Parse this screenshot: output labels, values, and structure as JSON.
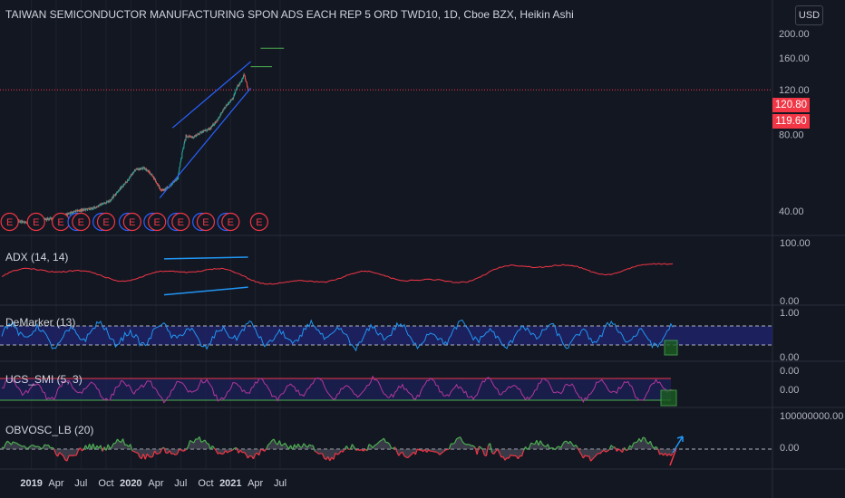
{
  "header": {
    "title": "TAIWAN SEMICONDUCTOR MANUFACTURING SPON ADS EACH REP 5 ORD TWD10, 1D, Cboe BZX, Heikin Ashi",
    "currency": "USD"
  },
  "price_tags": {
    "high": "120.80",
    "last": "119.60"
  },
  "colors": {
    "background": "#131722",
    "up": "#26a69a",
    "down": "#ef5350",
    "channel": "#2962ff",
    "adx": "#f23645",
    "demarker": "#2962ff",
    "smi": "#b2379d",
    "obv_up": "#4caf50",
    "obv_down": "#f23645",
    "target_line": "#4caf50",
    "earnings": "#f23645",
    "dividend": "#2962ff"
  },
  "panels": {
    "adx": {
      "label": "ADX (14, 14)",
      "y_ticks": [
        "100.00",
        "0.00"
      ]
    },
    "demarker": {
      "label": "DeMarker (13)",
      "y_ticks": [
        "1.00",
        "0.00"
      ]
    },
    "smi": {
      "label": "UCS_SMI (5, 3)",
      "y_ticks": [
        "0.00",
        "0.00"
      ]
    },
    "obv": {
      "label": "OBVOSC_LB (20)",
      "y_ticks": [
        "100000000.00",
        "0.00"
      ]
    }
  },
  "chart_data": {
    "type": "candlestick",
    "price_axis_ticks": [
      200,
      160,
      120,
      80,
      40
    ],
    "price_axis_labels": [
      "200.00",
      "160.00",
      "120.00",
      "80.00",
      "40.00"
    ],
    "x_ticks": [
      "2019",
      "Apr",
      "Jul",
      "Oct",
      "2020",
      "Apr",
      "Jul",
      "Oct",
      "2021",
      "Apr",
      "Jul"
    ],
    "price_anchors": {
      "x": [
        "2018-10-01",
        "2018-12-24",
        "2019-04-15",
        "2019-06-15",
        "2019-08-15",
        "2019-10-15",
        "2019-12-15",
        "2020-01-15",
        "2020-02-20",
        "2020-03-20",
        "2020-04-20",
        "2020-05-20",
        "2020-06-20",
        "2020-07-20",
        "2020-08-15",
        "2020-09-15",
        "2020-10-15",
        "2020-11-15",
        "2020-12-15",
        "2021-01-10",
        "2021-01-25",
        "2021-02-10",
        "2021-02-18",
        "2021-03-05"
      ],
      "y": [
        37,
        36,
        38,
        40,
        41,
        44,
        52,
        58,
        59,
        55,
        48,
        50,
        54,
        79,
        78,
        82,
        84,
        92,
        104,
        112,
        124,
        130,
        138,
        120
      ]
    },
    "channel": {
      "upper": [
        [
          "2020-06-01",
          85
        ],
        [
          "2021-03-15",
          155
        ]
      ],
      "lower": [
        [
          "2020-04-15",
          45
        ],
        [
          "2021-03-15",
          122
        ]
      ]
    },
    "targets": [
      {
        "x": [
          "2021-03-15",
          "2021-06-01"
        ],
        "y": 148
      },
      {
        "x": [
          "2021-04-20",
          "2021-07-15"
        ],
        "y": 175
      }
    ],
    "events": [
      {
        "type": "E",
        "x": "2018-10-12"
      },
      {
        "type": "E",
        "x": "2019-01-17"
      },
      {
        "type": "E",
        "x": "2019-04-18"
      },
      {
        "type": "D",
        "x": "2019-06-15"
      },
      {
        "type": "E",
        "x": "2019-07-01"
      },
      {
        "type": "D",
        "x": "2019-09-15"
      },
      {
        "type": "E",
        "x": "2019-10-01"
      },
      {
        "type": "D",
        "x": "2019-12-20"
      },
      {
        "type": "E",
        "x": "2020-01-05"
      },
      {
        "type": "D",
        "x": "2020-03-20"
      },
      {
        "type": "E",
        "x": "2020-04-05"
      },
      {
        "type": "D",
        "x": "2020-06-15"
      },
      {
        "type": "E",
        "x": "2020-07-01"
      },
      {
        "type": "D",
        "x": "2020-09-15"
      },
      {
        "type": "E",
        "x": "2020-10-01"
      },
      {
        "type": "D",
        "x": "2020-12-15"
      },
      {
        "type": "E",
        "x": "2020-12-31"
      },
      {
        "type": "E",
        "x": "2021-04-15"
      }
    ],
    "adx": {
      "y_range": [
        0,
        100
      ],
      "channel": {
        "upper": [
          [
            "2020-05-01",
            72
          ],
          [
            "2021-03-05",
            75
          ]
        ],
        "lower": [
          [
            "2020-05-01",
            10
          ],
          [
            "2021-03-05",
            31
          ]
        ]
      }
    },
    "demarker": {
      "y_range": [
        0,
        1
      ],
      "levels": [
        0.7,
        0.3
      ]
    },
    "smi": {
      "levels": [
        "upper",
        "lower"
      ]
    },
    "obv": {
      "projection": "up"
    }
  }
}
